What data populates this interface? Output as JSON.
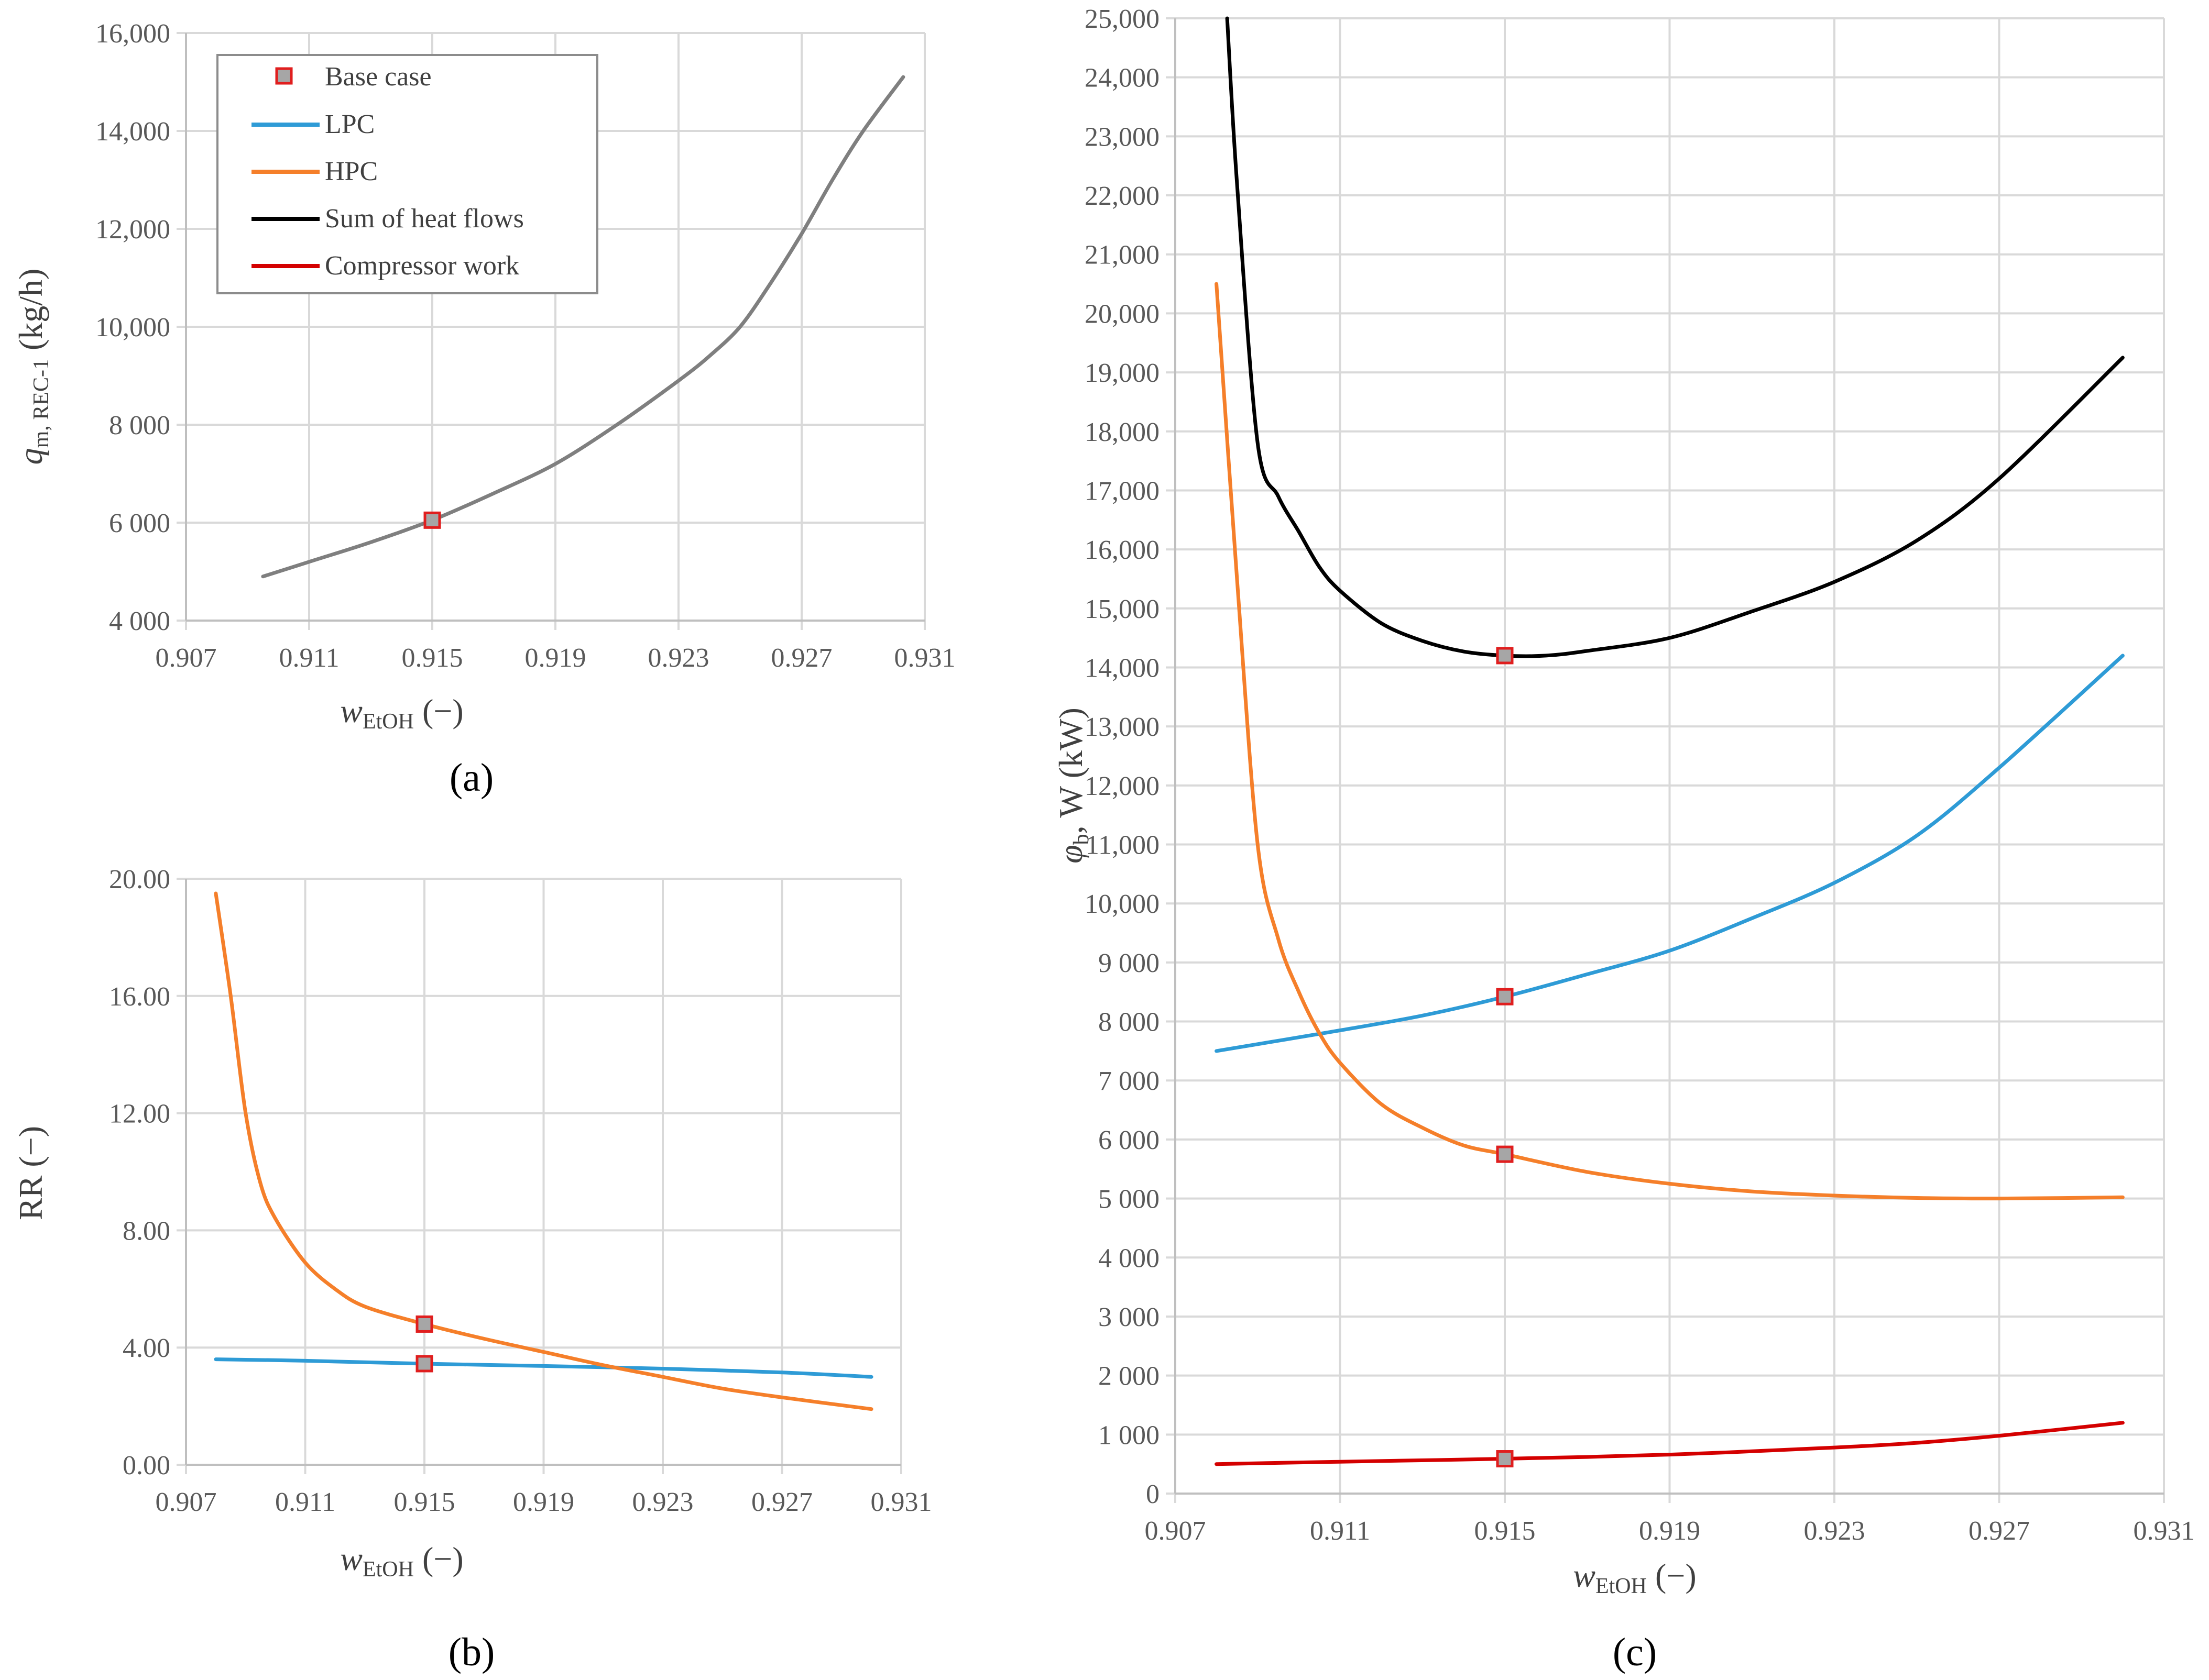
{
  "colors": {
    "gray": "#7f7f7f",
    "lpc": "#2e9bd6",
    "hpc": "#f57f2a",
    "sum": "#000000",
    "work": "#d40000",
    "marker_fill": "#a6a6a6",
    "marker_edge": "#e01e1e"
  },
  "legend": {
    "base_case": "Base case",
    "lpc": "LPC",
    "hpc": "HPC",
    "sum": "Sum of heat flows",
    "work": "Compressor work"
  },
  "chart_data": [
    {
      "id": "a",
      "type": "line",
      "panel_label": "(a)",
      "xlabel": {
        "main": "w",
        "sub": "EtOH",
        "tail": " (−)"
      },
      "ylabel": {
        "main": "q",
        "sub": "m, REC-1",
        "tail": " (kg/h)"
      },
      "xlim": [
        0.907,
        0.931
      ],
      "ylim": [
        4000,
        16000
      ],
      "xticks": [
        0.907,
        0.911,
        0.915,
        0.919,
        0.923,
        0.927,
        0.931
      ],
      "xtick_labels": [
        "0.907",
        "0.911",
        "0.915",
        "0.919",
        "0.923",
        "0.927",
        "0.931"
      ],
      "yticks": [
        4000,
        6000,
        8000,
        10000,
        12000,
        14000,
        16000
      ],
      "ytick_labels": [
        "4 000",
        "6 000",
        "8 000",
        "10,000",
        "12,000",
        "14,000",
        "16,000"
      ],
      "series": [
        {
          "name": "q_m",
          "color_key": "gray",
          "x": [
            0.9095,
            0.911,
            0.913,
            0.915,
            0.917,
            0.919,
            0.921,
            0.923,
            0.924,
            0.925,
            0.926,
            0.927,
            0.928,
            0.929,
            0.9303
          ],
          "y": [
            4900,
            5200,
            5600,
            6050,
            6600,
            7200,
            8000,
            8900,
            9400,
            10000,
            10900,
            11900,
            13000,
            14000,
            15100
          ]
        }
      ],
      "base_case": [
        {
          "x": 0.915,
          "y": 6050
        }
      ]
    },
    {
      "id": "b",
      "type": "line",
      "panel_label": "(b)",
      "xlabel": {
        "main": "w",
        "sub": "EtOH",
        "tail": " (−)"
      },
      "ylabel": {
        "main": "RR",
        "sub": "",
        "tail": " (−)"
      },
      "xlim": [
        0.907,
        0.931
      ],
      "ylim": [
        0,
        20
      ],
      "xticks": [
        0.907,
        0.911,
        0.915,
        0.919,
        0.923,
        0.927,
        0.931
      ],
      "xtick_labels": [
        "0.907",
        "0.911",
        "0.915",
        "0.919",
        "0.923",
        "0.927",
        "0.931"
      ],
      "yticks": [
        0,
        4,
        8,
        12,
        16,
        20
      ],
      "ytick_labels": [
        "0.00",
        "4.00",
        "8.00",
        "12.00",
        "16.00",
        "20.00"
      ],
      "series": [
        {
          "name": "LPC",
          "color_key": "lpc",
          "x": [
            0.908,
            0.911,
            0.915,
            0.919,
            0.923,
            0.927,
            0.93
          ],
          "y": [
            3.6,
            3.55,
            3.45,
            3.37,
            3.28,
            3.15,
            3.0
          ]
        },
        {
          "name": "HPC",
          "color_key": "hpc",
          "x": [
            0.908,
            0.9085,
            0.909,
            0.9095,
            0.91,
            0.911,
            0.912,
            0.913,
            0.915,
            0.917,
            0.919,
            0.921,
            0.923,
            0.925,
            0.927,
            0.93
          ],
          "y": [
            19.5,
            16.0,
            12.0,
            9.6,
            8.4,
            6.9,
            6.0,
            5.4,
            4.8,
            4.3,
            3.85,
            3.4,
            3.0,
            2.6,
            2.3,
            1.9
          ]
        }
      ],
      "base_case": [
        {
          "x": 0.915,
          "y": 4.8
        },
        {
          "x": 0.915,
          "y": 3.45
        }
      ]
    },
    {
      "id": "c",
      "type": "line",
      "panel_label": "(c)",
      "xlabel": {
        "main": "w",
        "sub": "EtOH",
        "tail": " (−)"
      },
      "ylabel": {
        "main": "φ",
        "sub": "b",
        "tail": ", W (kW)"
      },
      "xlim": [
        0.907,
        0.931
      ],
      "ylim": [
        0,
        25000
      ],
      "xticks": [
        0.907,
        0.911,
        0.915,
        0.919,
        0.923,
        0.927,
        0.931
      ],
      "xtick_labels": [
        "0.907",
        "0.911",
        "0.915",
        "0.919",
        "0.923",
        "0.927",
        "0.931"
      ],
      "yticks": [
        0,
        1000,
        2000,
        3000,
        4000,
        5000,
        6000,
        7000,
        8000,
        9000,
        10000,
        11000,
        12000,
        13000,
        14000,
        15000,
        16000,
        17000,
        18000,
        19000,
        20000,
        21000,
        22000,
        23000,
        24000,
        25000
      ],
      "ytick_labels": [
        "0",
        "1 000",
        "2 000",
        "3 000",
        "4 000",
        "5 000",
        "6 000",
        "7 000",
        "8 000",
        "9 000",
        "10,000",
        "11,000",
        "12,000",
        "13,000",
        "14,000",
        "15,000",
        "16,000",
        "17,000",
        "18,000",
        "19,000",
        "20,000",
        "21,000",
        "22,000",
        "23,000",
        "24,000",
        "25,000"
      ],
      "series": [
        {
          "name": "Sum of heat flows",
          "color_key": "sum",
          "x": [
            0.90826,
            0.9085,
            0.909,
            0.9095,
            0.91,
            0.9105,
            0.911,
            0.912,
            0.913,
            0.914,
            0.915,
            0.916,
            0.917,
            0.919,
            0.921,
            0.923,
            0.925,
            0.927,
            0.93
          ],
          "y": [
            25000,
            22200,
            17800,
            16900,
            16300,
            15700,
            15300,
            14750,
            14450,
            14270,
            14200,
            14200,
            14280,
            14500,
            14950,
            15450,
            16150,
            17200,
            19250
          ]
        },
        {
          "name": "LPC",
          "color_key": "lpc",
          "x": [
            0.908,
            0.911,
            0.913,
            0.915,
            0.917,
            0.919,
            0.921,
            0.923,
            0.925,
            0.927,
            0.93
          ],
          "y": [
            7500,
            7850,
            8100,
            8420,
            8800,
            9200,
            9750,
            10350,
            11150,
            12300,
            14200
          ]
        },
        {
          "name": "HPC",
          "color_key": "hpc",
          "x": [
            0.908,
            0.9085,
            0.909,
            0.9095,
            0.91,
            0.9105,
            0.911,
            0.912,
            0.913,
            0.914,
            0.915,
            0.917,
            0.919,
            0.921,
            0.923,
            0.925,
            0.927,
            0.93
          ],
          "y": [
            20500,
            15500,
            11000,
            9400,
            8500,
            7800,
            7300,
            6600,
            6200,
            5900,
            5750,
            5450,
            5250,
            5120,
            5050,
            5010,
            5000,
            5020
          ]
        },
        {
          "name": "Compressor work",
          "color_key": "work",
          "x": [
            0.908,
            0.911,
            0.915,
            0.919,
            0.923,
            0.925,
            0.927,
            0.93
          ],
          "y": [
            500,
            540,
            590,
            660,
            780,
            860,
            980,
            1200
          ]
        }
      ],
      "base_case": [
        {
          "x": 0.915,
          "y": 14200
        },
        {
          "x": 0.915,
          "y": 8420
        },
        {
          "x": 0.915,
          "y": 5750
        },
        {
          "x": 0.915,
          "y": 590
        }
      ]
    }
  ]
}
